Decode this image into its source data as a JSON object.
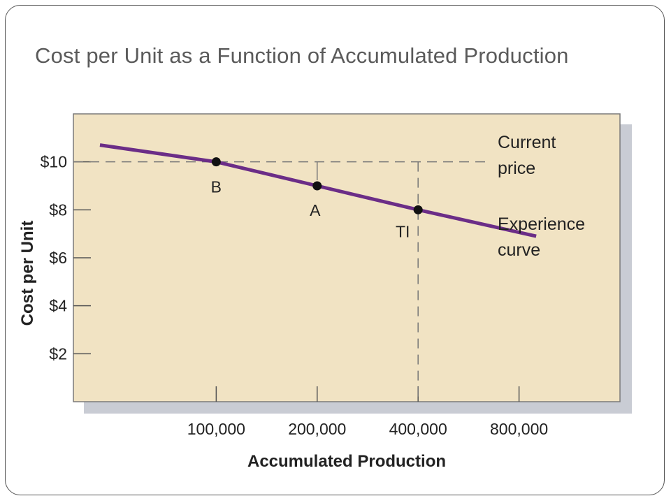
{
  "slide": {
    "title": "Cost per Unit as a Function of Accumulated Production"
  },
  "chart_data": {
    "type": "line",
    "xlabel": "Accumulated Production",
    "ylabel": "Cost per Unit",
    "x_scale": "log2",
    "x_ticks": [
      100000,
      200000,
      400000,
      800000
    ],
    "x_tick_labels": [
      "100,000",
      "200,000",
      "400,000",
      "800,000"
    ],
    "xlim": [
      37500,
      1600000
    ],
    "y_ticks": [
      2,
      4,
      6,
      8,
      10
    ],
    "y_tick_labels": [
      "$2",
      "$4",
      "$6",
      "$8",
      "$10"
    ],
    "ylim": [
      0,
      12
    ],
    "background": "#f1e3c3",
    "series": [
      {
        "name": "Experience curve",
        "color": "#6b2d87",
        "x": [
          45000,
          100000,
          200000,
          400000,
          900000
        ],
        "y": [
          10.7,
          10.0,
          9.0,
          8.0,
          6.9
        ]
      }
    ],
    "points": [
      {
        "label": "B",
        "x": 100000,
        "y": 10.0
      },
      {
        "label": "A",
        "x": 200000,
        "y": 9.0
      },
      {
        "label": "TI",
        "x": 400000,
        "y": 8.0
      }
    ],
    "reference_lines": [
      {
        "type": "horizontal",
        "y": 10.0,
        "label": "Current price"
      },
      {
        "type": "vertical",
        "x": 400000
      }
    ],
    "annotations": {
      "current_price": [
        "Current",
        "price"
      ],
      "experience_curve": [
        "Experience",
        "curve"
      ]
    }
  }
}
